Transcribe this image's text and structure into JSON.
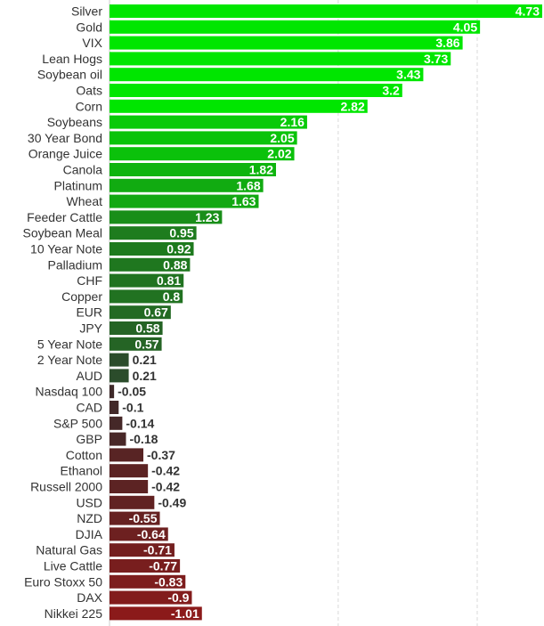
{
  "chart_data": {
    "type": "bar",
    "orientation": "horizontal",
    "title": "",
    "xlabel": "",
    "ylabel": "",
    "xlim": [
      -1.05,
      4.75
    ],
    "grid": true,
    "grid_values": [
      2.5
    ],
    "categories": [
      "Silver",
      "Gold",
      "VIX",
      "Lean Hogs",
      "Soybean oil",
      "Oats",
      "Corn",
      "Soybeans",
      "30 Year Bond",
      "Orange Juice",
      "Canola",
      "Platinum",
      "Wheat",
      "Feeder Cattle",
      "Soybean Meal",
      "10 Year Note",
      "Palladium",
      "CHF",
      "Copper",
      "EUR",
      "JPY",
      "5 Year Note",
      "2 Year Note",
      "AUD",
      "Nasdaq 100",
      "CAD",
      "S&P 500",
      "GBP",
      "Cotton",
      "Ethanol",
      "Russell 2000",
      "USD",
      "NZD",
      "DJIA",
      "Natural Gas",
      "Live Cattle",
      "Euro Stoxx 50",
      "DAX",
      "Nikkei 225"
    ],
    "values": [
      4.73,
      4.05,
      3.86,
      3.73,
      3.43,
      3.2,
      2.82,
      2.16,
      2.05,
      2.02,
      1.82,
      1.68,
      1.63,
      1.23,
      0.95,
      0.92,
      0.88,
      0.81,
      0.8,
      0.67,
      0.58,
      0.57,
      0.21,
      0.21,
      -0.05,
      -0.1,
      -0.14,
      -0.18,
      -0.37,
      -0.42,
      -0.42,
      -0.49,
      -0.55,
      -0.64,
      -0.71,
      -0.77,
      -0.83,
      -0.9,
      -1.01
    ],
    "value_labels": [
      "4.73",
      "4.05",
      "3.86",
      "3.73",
      "3.43",
      "3.2",
      "2.82",
      "2.16",
      "2.05",
      "2.02",
      "1.82",
      "1.68",
      "1.63",
      "1.23",
      "0.95",
      "0.92",
      "0.88",
      "0.81",
      "0.8",
      "0.67",
      "0.58",
      "0.57",
      "0.21",
      "0.21",
      "-0.05",
      "-0.1",
      "-0.14",
      "-0.18",
      "-0.37",
      "-0.42",
      "-0.42",
      "-0.49",
      "-0.55",
      "-0.64",
      "-0.71",
      "-0.77",
      "-0.83",
      "-0.9",
      "-1.01"
    ],
    "colors": {
      "positive_strong": "#00e600",
      "positive_weak": "#2f3f2f",
      "negative_weak": "#3a2a2a",
      "negative_strong": "#8b1a1a",
      "label_on_bar": "#ffffff",
      "label_off_bar": "#333333",
      "category_text": "#333333"
    }
  }
}
